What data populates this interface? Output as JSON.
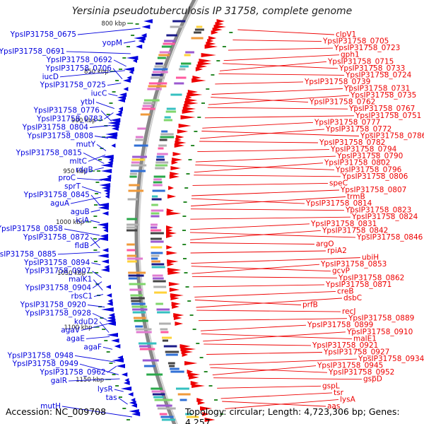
{
  "title": "Yersinia pseudotuberculosis IP 31758, complete genome",
  "accession": "Accession: NC_009708",
  "summary": "Topology: circular; Length: 4,723,306 bp; Genes: 4,257",
  "colors": {
    "reverse_strand": "#0000dd",
    "forward_strand": "#ee0000",
    "backbone": "#888888",
    "tick": "#2a8a2a",
    "tick_label": "#222222"
  },
  "ticks": [
    "800 kbp",
    "850 kbp",
    "900 kbp",
    "950 kbp",
    "1000 kbp",
    "1050 kbp",
    "1100 kbp",
    "1150 kbp"
  ],
  "left_labels": [
    "YpsIP31758_0675",
    "yopM",
    "YpsIP31758_0691",
    "YpsIP31758_0692",
    "YpsIP31758_0706",
    "iucD",
    "YpsIP31758_0725",
    "iucC",
    "ytbI",
    "YpsIP31758_0776",
    "YpsIP31758_0783",
    "YpsIP31758_0804",
    "YpsIP31758_0808",
    "mutY",
    "YpsIP31758_0815",
    "mltC",
    "rdgB",
    "proC",
    "sprT",
    "YpsIP31758_0845",
    "aguA",
    "aguB",
    "iciA",
    "YpsIP31758_0858",
    "YpsIP31758_0872",
    "fldB",
    "YpsIP31758_0885",
    "YpsIP31758_0894",
    "YpsIP31758_0907",
    "malK1",
    "YpsIP31758_0904",
    "rbsC1",
    "YpsIP31758_0920",
    "YpsIP31758_0928",
    "kduD2",
    "agaV",
    "agaE",
    "agaF",
    "YpsIP31758_0948",
    "YpsIP31758_0949",
    "YpsIP31758_0962",
    "galR",
    "lysR",
    "tas",
    "mutH"
  ],
  "right_labels": [
    "clpV1",
    "YpsIP31758_0705",
    "YpsIP31758_0723",
    "gph1",
    "YpsIP31758_0715",
    "YpsIP31758_0733",
    "YpsIP31758_0724",
    "YpsIP31758_0739",
    "YpsIP31758_0731",
    "YpsIP31758_0735",
    "YpsIP31758_0762",
    "YpsIP31758_0767",
    "YpsIP31758_0751",
    "YpsIP31758_0777",
    "YpsIP31758_0772",
    "YpsIP31758_0786",
    "YpsIP31758_0782",
    "YpsIP31758_0794",
    "YpsIP31758_0790",
    "YpsIP31758_0802",
    "YpsIP31758_0796",
    "YpsIP31758_0806",
    "speC",
    "YpsIP31758_0807",
    "trmB",
    "YpsIP31758_0814",
    "YpsIP31758_0823",
    "YpsIP31758_0824",
    "YpsIP31758_0831",
    "YpsIP31758_0842",
    "YpsIP31758_0846",
    "argO",
    "rpiA2",
    "ubiH",
    "YpsIP31758_0853",
    "gcvP",
    "YpsIP31758_0862",
    "YpsIP31758_0871",
    "creB",
    "dsbC",
    "prfB",
    "recJ",
    "YpsIP31758_0889",
    "YpsIP31758_0899",
    "YpsIP31758_0910",
    "malE1",
    "YpsIP31758_0921",
    "YpsIP31758_0927",
    "YpsIP31758_0934",
    "YpsIP31758_0945",
    "YpsIP31758_0952",
    "gspD",
    "gspL",
    "tsr",
    "lysA",
    "aas"
  ]
}
